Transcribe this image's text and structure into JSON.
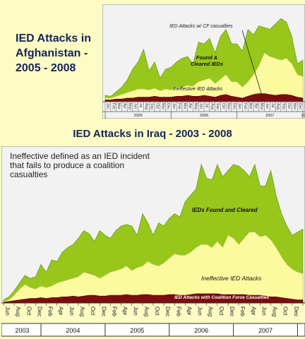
{
  "colors": {
    "page_bg": "#fdfcc4",
    "plot_bg": "#f2f2f2",
    "found": "#96c71a",
    "ineffective": "#fbfa9f",
    "cf": "#7a0d10",
    "title": "#13235a"
  },
  "afghanistan": {
    "title": "IED Attacks in Afghanistan - 2005 - 2008",
    "annotations": {
      "cf": "IED Attacks w/ CF casualties",
      "found_line1": "Found &",
      "found_line2": "Cleared IEDs",
      "ineffective": "Ineffective IED Attacks"
    },
    "years": [
      {
        "label": "2005",
        "month_start": 0,
        "month_end": 12
      },
      {
        "label": "2006",
        "month_start": 12,
        "month_end": 24
      },
      {
        "label": "2007",
        "month_start": 24,
        "month_end": 36
      },
      {
        "label": "2008",
        "month_start": 36,
        "month_end": 37
      }
    ],
    "month_labels": [
      "Jan",
      "Feb",
      "Mar",
      "Apr",
      "May",
      "Jun",
      "Jul",
      "Aug",
      "Sep",
      "Oct",
      "Nov",
      "Dec",
      "Jan",
      "Feb",
      "Mar",
      "Apr",
      "May",
      "Jun",
      "Jul",
      "Aug",
      "Sep",
      "Oct",
      "Nov",
      "Dec",
      "Jan",
      "Feb",
      "Mar",
      "Apr",
      "May",
      "Jun",
      "Jul",
      "Aug",
      "Sep",
      "Oct",
      "Nov",
      "Dec",
      "Jan"
    ]
  },
  "iraq": {
    "title": "IED Attacks in Iraq - 2003 - 2008",
    "note": "Ineffective defined as an IED incident that fails to produce a coalition casualties",
    "annotations": {
      "found": "IEDs Found and Cleared",
      "ineffective": "Ineffective IED Attacks",
      "cf": "IED Attacks with Coalition Force Casualties"
    },
    "month_labels": [
      "Jun",
      "Aug",
      "Oct",
      "Dec",
      "Feb",
      "Apr",
      "Jun",
      "Aug",
      "Oct",
      "Dec",
      "Feb",
      "Apr",
      "Jun",
      "Aug",
      "Oct",
      "Dec",
      "Feb",
      "Apr",
      "Jun",
      "Aug",
      "Oct",
      "Dec",
      "Feb",
      "Apr",
      "Jun",
      "Aug",
      "Oct",
      "Dec",
      "Jan"
    ],
    "years": [
      {
        "label": "2003",
        "month_start": 0,
        "month_end": 7
      },
      {
        "label": "2004",
        "month_start": 7,
        "month_end": 19
      },
      {
        "label": "2005",
        "month_start": 19,
        "month_end": 31
      },
      {
        "label": "2006",
        "month_start": 31,
        "month_end": 43
      },
      {
        "label": "2007",
        "month_start": 43,
        "month_end": 55
      },
      {
        "label": "",
        "month_start": 55,
        "month_end": 57
      }
    ]
  },
  "chart_data": [
    {
      "type": "area",
      "title": "IED Attacks in Afghanistan - 2005 - 2008",
      "x": [
        "Jan",
        "Feb",
        "Mar",
        "Apr",
        "May",
        "Jun",
        "Jul",
        "Aug",
        "Sep",
        "Oct",
        "Nov",
        "Dec",
        "Jan",
        "Feb",
        "Mar",
        "Apr",
        "May",
        "Jun",
        "Jul",
        "Aug",
        "Sep",
        "Oct",
        "Nov",
        "Dec",
        "Jan",
        "Feb",
        "Mar",
        "Apr",
        "May",
        "Jun",
        "Jul",
        "Aug",
        "Sep",
        "Oct",
        "Nov",
        "Dec",
        "Jan"
      ],
      "ylim": [
        0,
        100
      ],
      "series": [
        {
          "name": "IED Attacks w/ CF casualties",
          "values": [
            2,
            2,
            3,
            3,
            4,
            4,
            5,
            5,
            5,
            6,
            5,
            5,
            5,
            6,
            6,
            7,
            6,
            6,
            7,
            6,
            5,
            7,
            8,
            6,
            5,
            4,
            6,
            8,
            9,
            9,
            8,
            7,
            8,
            8,
            7,
            5,
            4
          ]
        },
        {
          "name": "Ineffective IED Attacks",
          "values": [
            4,
            4,
            6,
            8,
            10,
            12,
            14,
            14,
            13,
            15,
            12,
            14,
            13,
            16,
            16,
            18,
            17,
            22,
            24,
            26,
            20,
            25,
            30,
            22,
            22,
            16,
            22,
            30,
            40,
            54,
            50,
            48,
            46,
            48,
            42,
            30,
            28
          ]
        },
        {
          "name": "Found & Cleared IEDs",
          "values": [
            7,
            6,
            11,
            16,
            24,
            36,
            44,
            58,
            34,
            44,
            26,
            36,
            38,
            44,
            48,
            50,
            42,
            66,
            64,
            70,
            54,
            72,
            80,
            64,
            64,
            56,
            80,
            74,
            84,
            82,
            80,
            86,
            92,
            88,
            72,
            42,
            46
          ]
        }
      ]
    },
    {
      "type": "area",
      "title": "IED Attacks in Iraq - 2003 - 2008",
      "note": "Ineffective defined as an IED incident that fails to produce a coalition casualties",
      "x": [
        "Jun 2003",
        "Jul 2003",
        "Aug 2003",
        "Sep 2003",
        "Oct 2003",
        "Nov 2003",
        "Dec 2003",
        "Jan 2004",
        "Feb 2004",
        "Mar 2004",
        "Apr 2004",
        "May 2004",
        "Jun 2004",
        "Jul 2004",
        "Aug 2004",
        "Sep 2004",
        "Oct 2004",
        "Nov 2004",
        "Dec 2004",
        "Jan 2005",
        "Feb 2005",
        "Mar 2005",
        "Apr 2005",
        "May 2005",
        "Jun 2005",
        "Jul 2005",
        "Aug 2005",
        "Sep 2005",
        "Oct 2005",
        "Nov 2005",
        "Dec 2005",
        "Jan 2006",
        "Feb 2006",
        "Mar 2006",
        "Apr 2006",
        "May 2006",
        "Jun 2006",
        "Jul 2006",
        "Aug 2006",
        "Sep 2006",
        "Oct 2006",
        "Nov 2006",
        "Dec 2006",
        "Jan 2007",
        "Feb 2007",
        "Mar 2007",
        "Apr 2007",
        "May 2007",
        "Jun 2007",
        "Jul 2007",
        "Aug 2007",
        "Sep 2007",
        "Oct 2007",
        "Nov 2007",
        "Dec 2007",
        "Jan 2008",
        "Feb 2008"
      ],
      "ylim": [
        0,
        100
      ],
      "series": [
        {
          "name": "IED Attacks with Coalition Force Casualties",
          "values": [
            0.5,
            1,
            1.5,
            2,
            2.5,
            3,
            3,
            3.5,
            3,
            3.5,
            3.5,
            4,
            4,
            4.5,
            4,
            4.5,
            5,
            5,
            4.5,
            4.5,
            5,
            5,
            5,
            5.5,
            5,
            5,
            5.5,
            5.5,
            5,
            5,
            5,
            5.5,
            5.5,
            5,
            5,
            5.5,
            6,
            6,
            6,
            6,
            6,
            5.5,
            5.5,
            5.5,
            5.5,
            5.5,
            5,
            5,
            5,
            4.5,
            4,
            4,
            3.5,
            3,
            2.5,
            2,
            2
          ]
        },
        {
          "name": "Ineffective IED Attacks",
          "values": [
            1,
            2,
            5,
            9,
            12,
            10,
            9,
            11,
            10,
            11,
            13,
            14,
            15,
            16,
            17,
            20,
            19,
            18,
            16,
            18,
            20,
            21,
            22,
            24,
            21,
            23,
            24,
            27,
            25,
            24,
            26,
            29,
            32,
            31,
            31,
            33,
            36,
            38,
            38,
            36,
            40,
            36,
            44,
            42,
            38,
            42,
            46,
            46,
            43,
            44,
            41,
            36,
            30,
            25,
            22,
            20,
            19
          ]
        },
        {
          "name": "IEDs Found and Cleared",
          "values": [
            2,
            4,
            8,
            13,
            18,
            16,
            17,
            25,
            20,
            28,
            27,
            33,
            36,
            38,
            42,
            47,
            45,
            40,
            47,
            44,
            42,
            47,
            50,
            51,
            50,
            44,
            58,
            52,
            44,
            52,
            50,
            55,
            58,
            56,
            66,
            70,
            74,
            90,
            81,
            80,
            90,
            82,
            86,
            90,
            89,
            86,
            82,
            90,
            76,
            76,
            86,
            70,
            58,
            50,
            44,
            46,
            48
          ]
        }
      ]
    }
  ]
}
